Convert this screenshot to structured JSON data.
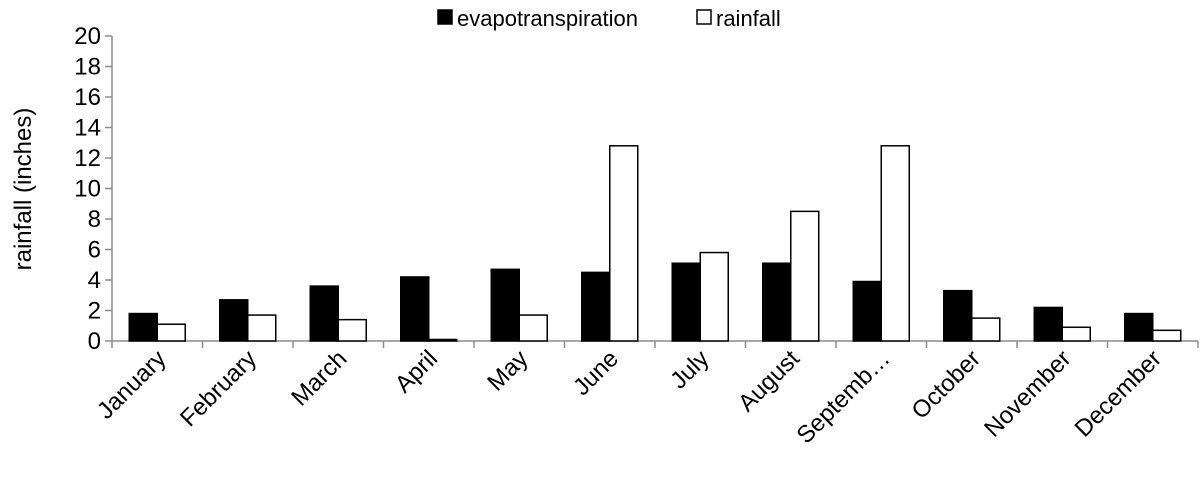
{
  "chart_data": {
    "type": "bar",
    "title": "",
    "xlabel": "",
    "ylabel": "rainfall (inches)",
    "ylim": [
      0,
      20
    ],
    "yticks": [
      0,
      2,
      4,
      6,
      8,
      10,
      12,
      14,
      16,
      18,
      20
    ],
    "grid": false,
    "legend_position": "top-center",
    "categories": [
      "January",
      "February",
      "March",
      "April",
      "May",
      "June",
      "July",
      "August",
      "Septemb…",
      "October",
      "November",
      "December"
    ],
    "series": [
      {
        "name": "evapotranspiration",
        "color": "#000000",
        "values": [
          1.8,
          2.7,
          3.6,
          4.2,
          4.7,
          4.5,
          5.1,
          5.1,
          3.9,
          3.3,
          2.2,
          1.8
        ]
      },
      {
        "name": "rainfall",
        "color": "#ffffff",
        "values": [
          1.1,
          1.7,
          1.4,
          0.1,
          1.7,
          12.8,
          5.8,
          8.5,
          12.8,
          1.5,
          0.9,
          0.7
        ]
      }
    ]
  }
}
